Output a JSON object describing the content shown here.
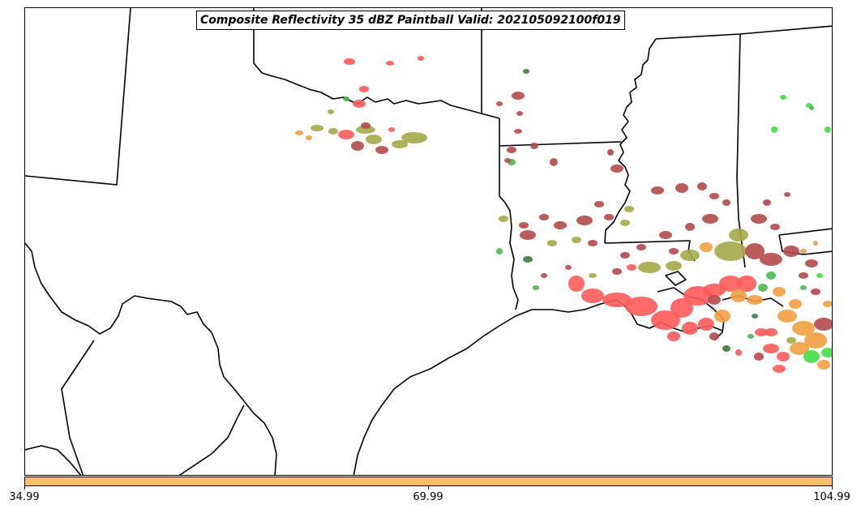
{
  "title": "Composite Reflectivity 35 dBZ Paintball Valid: 202105092100f019",
  "colorbar": {
    "color": "#fdc068",
    "ticks": [
      "34.99",
      "69.99",
      "104.99"
    ]
  },
  "blob_colors": {
    "red": "#ff5a5a",
    "darkred": "#b24a4a",
    "olive": "#a4a848",
    "green": "#4cb84c",
    "brightgreen": "#44dd44",
    "orange": "#f2a040",
    "darkgreen": "#3c7a3c"
  }
}
